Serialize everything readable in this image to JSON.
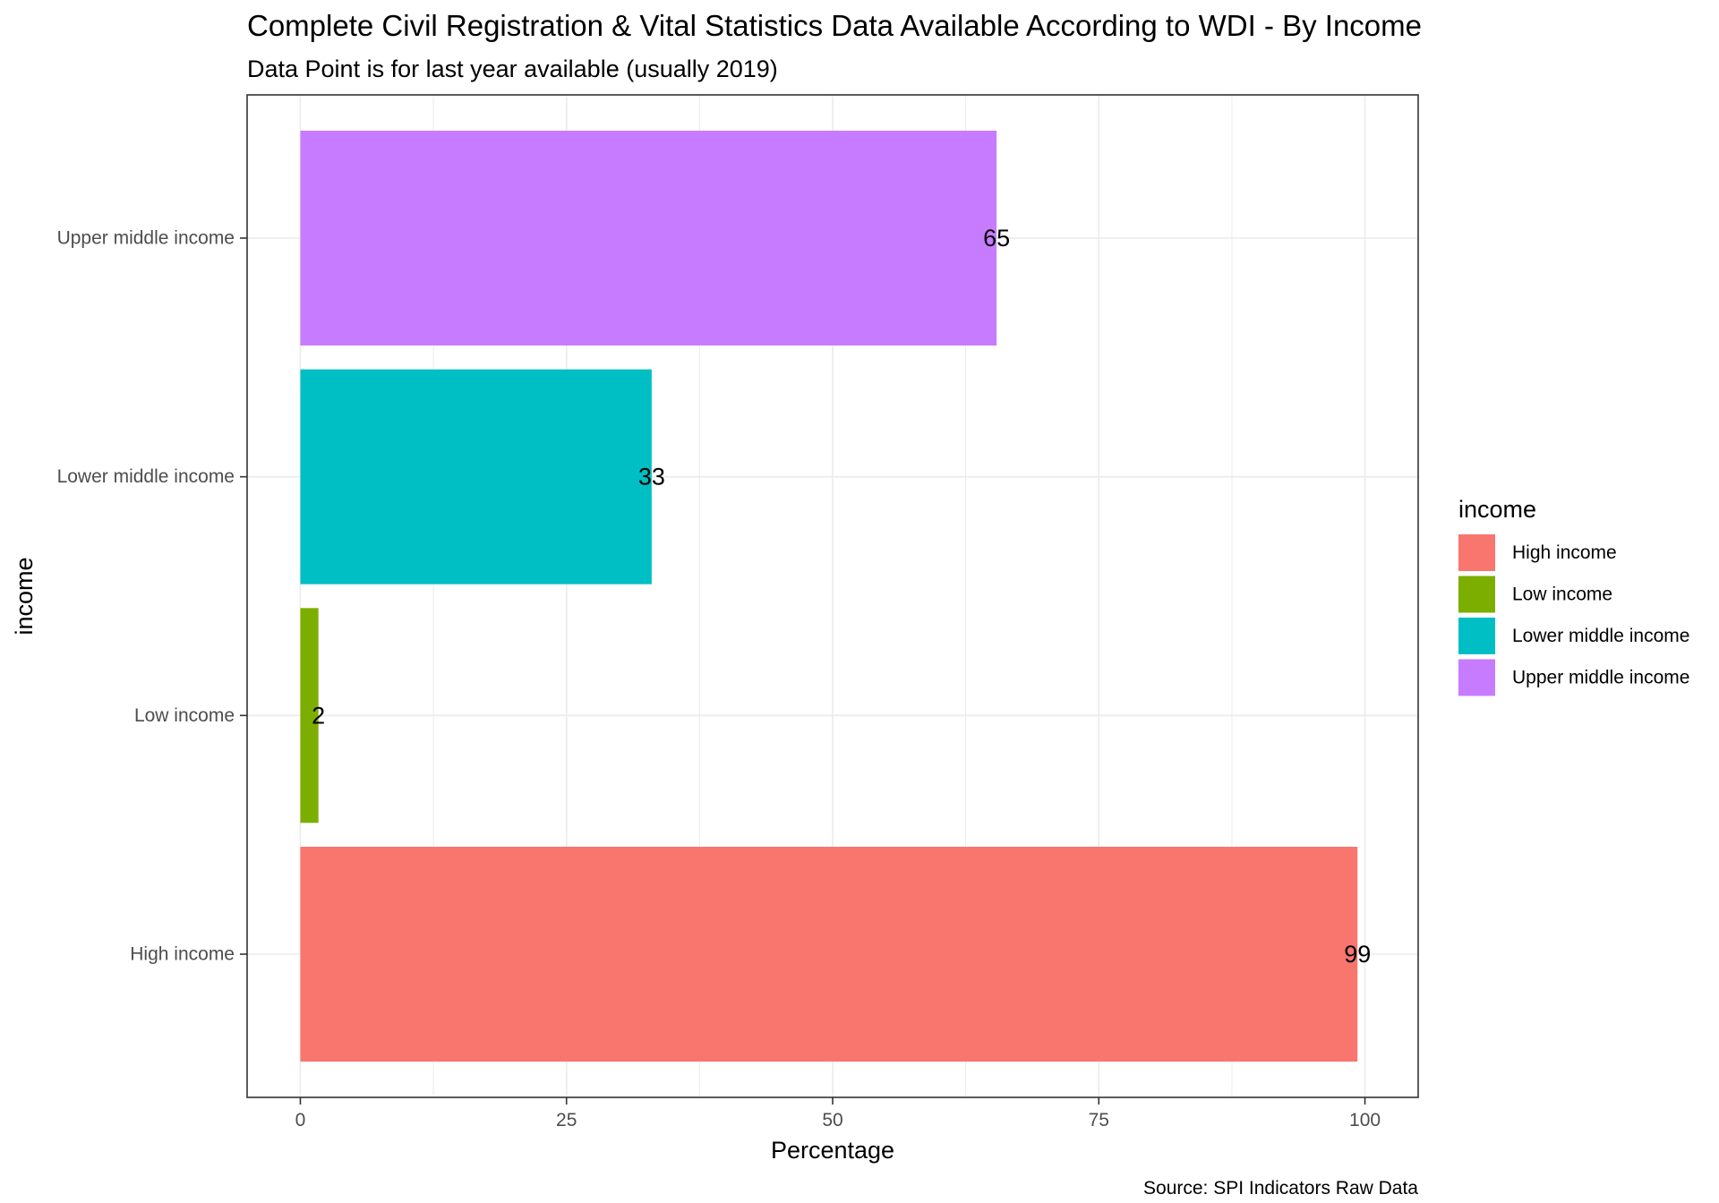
{
  "chart_data": {
    "type": "bar",
    "orientation": "horizontal",
    "title": "Complete Civil Registration & Vital Statistics Data Available According to WDI - By Income",
    "subtitle": "Data Point is for last year available (usually 2019)",
    "xlabel": "Percentage",
    "ylabel": "income",
    "caption": "Source: SPI Indicators Raw Data",
    "xlim": [
      -5,
      105
    ],
    "xticks": [
      0,
      25,
      50,
      75,
      100
    ],
    "xtick_labels": [
      "0",
      "25",
      "50",
      "75",
      "100"
    ],
    "grid": true,
    "categories": [
      "High income",
      "Low income",
      "Lower middle income",
      "Upper middle income"
    ],
    "values": [
      99.3,
      1.7,
      33,
      65.4
    ],
    "data_labels": [
      "99",
      "2",
      "33",
      "65"
    ],
    "colors": [
      "#F8766D",
      "#7CAE00",
      "#00BFC4",
      "#C77CFF"
    ],
    "legend": {
      "title": "income",
      "placement": "right",
      "entries": [
        "High income",
        "Low income",
        "Lower middle income",
        "Upper middle income"
      ]
    }
  }
}
